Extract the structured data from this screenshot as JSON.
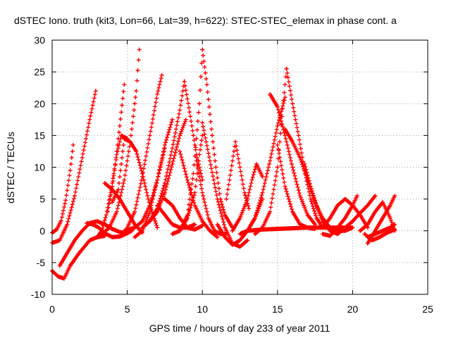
{
  "chart_data": {
    "type": "scatter",
    "title": "dSTEC Iono. truth (kit3, Lon=66, Lat=39, h=622): STEC-STEC_elemax in phase cont. a",
    "xlabel": "GPS time / hours of day 233 of year 2011",
    "ylabel": "dSTEC  / TECUs",
    "xlim": [
      0,
      25
    ],
    "ylim": [
      -10,
      30
    ],
    "xticks": [
      0,
      5,
      10,
      15,
      20,
      25
    ],
    "yticks": [
      -10,
      -5,
      0,
      5,
      10,
      15,
      20,
      25,
      30
    ],
    "grid": true,
    "marker": "+",
    "color": "#ff0000",
    "series": [
      {
        "x": [
          0,
          0.3,
          0.6,
          0.9,
          1.2,
          1.4
        ],
        "y": [
          -0.3,
          0.2,
          1.6,
          4.8,
          9.5,
          13.5
        ]
      },
      {
        "x": [
          0,
          0.5,
          1.0,
          1.5,
          2.0,
          2.5,
          2.9
        ],
        "y": [
          -1.9,
          -1.5,
          1.0,
          5.5,
          11.5,
          17.5,
          22
        ]
      },
      {
        "x": [
          0,
          0.4,
          0.8,
          1.2,
          1.8,
          2.5,
          3.0,
          3.5
        ],
        "y": [
          -6.3,
          -7.2,
          -7.5,
          -5.5,
          -3.5,
          -1.5,
          -1.0,
          -0.8
        ]
      },
      {
        "x": [
          0.5,
          1.0,
          1.5,
          2.0,
          2.5,
          3.0,
          3.5,
          4.0,
          4.5,
          5.0
        ],
        "y": [
          -5.5,
          -3.5,
          -1.5,
          0.0,
          1.2,
          1.5,
          1.0,
          0.3,
          -0.2,
          -0.4
        ]
      },
      {
        "x": [
          2.3,
          2.7,
          3.1,
          3.6,
          4.0,
          4.5,
          4.9,
          5.3
        ],
        "y": [
          1.2,
          1.0,
          0.5,
          -0.5,
          -1.0,
          -0.9,
          -0.5,
          0.0
        ]
      },
      {
        "x": [
          3.0,
          3.3,
          3.6,
          3.9,
          4.2,
          4.5,
          4.8
        ],
        "y": [
          -1.0,
          0.0,
          2.5,
          6.0,
          10.5,
          16.5,
          23
        ]
      },
      {
        "x": [
          3.3,
          3.8,
          4.3,
          4.8,
          5.2,
          5.6,
          5.8
        ],
        "y": [
          -0.6,
          0.5,
          3.0,
          8.0,
          14.0,
          22.0,
          28.5
        ]
      },
      {
        "x": [
          3.5,
          4.0,
          4.5,
          5.0,
          5.5,
          6.0
        ],
        "y": [
          7.5,
          6.5,
          5.0,
          3.0,
          1.0,
          -0.3
        ]
      },
      {
        "x": [
          3.7,
          4.0,
          4.3,
          4.6,
          5.0
        ],
        "y": [
          3.0,
          7.0,
          12.0,
          15.0,
          14.5
        ]
      },
      {
        "x": [
          4.0,
          4.4,
          4.8,
          5.2,
          5.6,
          6.0,
          6.5,
          7.0
        ],
        "y": [
          4.5,
          6.5,
          14.5,
          14.0,
          12.5,
          9.0,
          4.0,
          0.5
        ]
      },
      {
        "x": [
          4.8,
          5.5,
          6.0,
          6.5,
          7.0,
          7.5
        ],
        "y": [
          0.0,
          0.5,
          1.5,
          4.0,
          8.0,
          13.0
        ]
      },
      {
        "x": [
          5.0,
          5.5,
          6.0,
          6.5,
          7.0,
          7.3
        ],
        "y": [
          0.5,
          3.0,
          8.5,
          15.0,
          21.5,
          24.5
        ]
      },
      {
        "x": [
          5.5,
          6.0,
          6.5,
          7.0,
          7.5,
          8.0
        ],
        "y": [
          -1.0,
          0.0,
          3.0,
          8.0,
          13.5,
          17.5
        ]
      },
      {
        "x": [
          6.0,
          6.5,
          7.0,
          7.5,
          8.0,
          8.5,
          8.8
        ],
        "y": [
          0.5,
          1.5,
          3.5,
          7.5,
          13.0,
          19.0,
          23.5
        ]
      },
      {
        "x": [
          6.5,
          7.0,
          7.5,
          8.0,
          8.5,
          8.9
        ],
        "y": [
          1.5,
          3.0,
          6.0,
          10.5,
          15.0,
          17.5
        ]
      },
      {
        "x": [
          7.0,
          7.5,
          8.0,
          8.5,
          9.0,
          9.5
        ],
        "y": [
          4.0,
          2.5,
          1.0,
          0.5,
          0.5,
          1.0
        ]
      },
      {
        "x": [
          7.5,
          8.0,
          8.5,
          9.0,
          9.5,
          10.0
        ],
        "y": [
          5.0,
          4.0,
          2.0,
          0.5,
          0.2,
          0.8
        ]
      },
      {
        "x": [
          8.8,
          9.2,
          9.6,
          10.0
        ],
        "y": [
          23.5,
          18.0,
          12.0,
          8.0
        ]
      },
      {
        "x": [
          8.0,
          8.5,
          9.0,
          9.5,
          9.8,
          10.0
        ],
        "y": [
          -0.5,
          0.0,
          2.0,
          6.0,
          12.0,
          15.0
        ]
      },
      {
        "x": [
          8.5,
          9.0,
          9.4,
          9.8,
          10.0
        ],
        "y": [
          0.0,
          2.5,
          9.0,
          20.0,
          28.5
        ]
      },
      {
        "x": [
          9.6,
          10.0,
          10.4,
          10.8,
          11.2,
          11.6
        ],
        "y": [
          11.0,
          6.0,
          2.0,
          0.0,
          -0.5,
          -0.5
        ]
      },
      {
        "x": [
          10.0,
          10.3,
          10.6,
          10.9,
          11.2,
          11.5,
          12.0
        ],
        "y": [
          28.5,
          23.0,
          16.0,
          10.0,
          5.0,
          2.5,
          0.5
        ]
      },
      {
        "x": [
          8.5,
          9.0,
          9.5,
          10.0,
          10.5,
          11.0
        ],
        "y": [
          12.5,
          8.0,
          4.0,
          1.5,
          0.0,
          -1.0
        ]
      },
      {
        "x": [
          10.0,
          10.5,
          11.0,
          11.5,
          12.0,
          12.5,
          13.0
        ],
        "y": [
          17.0,
          11.0,
          5.0,
          0.5,
          -2.0,
          -2.5,
          -1.5
        ]
      },
      {
        "x": [
          11.0,
          11.5,
          12.0,
          12.5,
          13.0,
          13.5,
          14.0
        ],
        "y": [
          1.0,
          -1.0,
          -2.2,
          -1.5,
          0.0,
          2.0,
          5.0
        ]
      },
      {
        "x": [
          11.6,
          11.9,
          12.2,
          12.5,
          12.8,
          13.1
        ],
        "y": [
          5.0,
          9.5,
          14.0,
          10.0,
          6.0,
          3.5
        ]
      },
      {
        "x": [
          12.0,
          12.5,
          13.0,
          13.3,
          13.6,
          14.0
        ],
        "y": [
          0.0,
          2.0,
          5.0,
          8.0,
          10.5,
          8.5
        ]
      },
      {
        "x": [
          12.5,
          13.0,
          13.5,
          14.0,
          14.5,
          15.0,
          15.5
        ],
        "y": [
          -0.5,
          0.0,
          2.0,
          6.0,
          11.0,
          16.5,
          21.0
        ]
      },
      {
        "x": [
          13.5,
          14.0,
          14.5,
          15.0,
          15.3,
          15.6
        ],
        "y": [
          -0.5,
          0.5,
          3.0,
          10.0,
          18.0,
          25.5
        ]
      },
      {
        "x": [
          14.5,
          15.0,
          15.5,
          16.0,
          16.5,
          17.0,
          17.5
        ],
        "y": [
          21.5,
          19.5,
          15.0,
          10.0,
          5.5,
          2.5,
          1.0
        ]
      },
      {
        "x": [
          15.6,
          16.0,
          16.4,
          16.8,
          17.2,
          17.6,
          18.0
        ],
        "y": [
          25.5,
          20.0,
          15.0,
          9.5,
          5.0,
          2.0,
          0.5
        ]
      },
      {
        "x": [
          15.0,
          15.5,
          16.0,
          16.5,
          17.0,
          17.5
        ],
        "y": [
          13.5,
          7.0,
          3.0,
          1.0,
          0.5,
          0.3
        ]
      },
      {
        "x": [
          15.5,
          16.0,
          16.5,
          17.0,
          17.5,
          18.0,
          18.5,
          19.0
        ],
        "y": [
          16.0,
          14.0,
          11.5,
          8.0,
          4.5,
          1.5,
          0.0,
          -0.5
        ]
      },
      {
        "x": [
          13.0,
          14.0,
          15.0,
          16.0,
          17.0,
          18.0,
          19.0,
          20.0
        ],
        "y": [
          0.0,
          0.2,
          0.3,
          0.4,
          0.5,
          0.5,
          0.5,
          0.5
        ]
      },
      {
        "x": [
          16.8,
          17.2,
          17.6,
          18.0,
          18.5,
          19.0,
          19.5,
          20.0
        ],
        "y": [
          10.5,
          7.0,
          4.0,
          2.0,
          0.5,
          0.0,
          0.0,
          0.5
        ]
      },
      {
        "x": [
          18.0,
          18.5,
          19.0,
          19.5,
          20.0,
          20.3
        ],
        "y": [
          -0.5,
          -0.8,
          0.5,
          2.0,
          4.0,
          5.5
        ]
      },
      {
        "x": [
          18.0,
          18.5,
          19.0,
          19.5,
          20.0,
          20.5,
          21.0
        ],
        "y": [
          0.5,
          2.0,
          4.0,
          5.0,
          4.0,
          2.5,
          0.5
        ]
      },
      {
        "x": [
          19.0,
          19.5,
          20.0,
          20.5,
          21.0,
          21.5
        ],
        "y": [
          -0.5,
          0.5,
          1.5,
          2.8,
          4.0,
          5.5
        ]
      },
      {
        "x": [
          20.5,
          21.0,
          21.5,
          22.0,
          22.5,
          22.8
        ],
        "y": [
          0.0,
          1.0,
          3.0,
          4.5,
          2.0,
          0.0
        ]
      },
      {
        "x": [
          21.0,
          21.5,
          22.0,
          22.5,
          22.8
        ],
        "y": [
          -1.0,
          -0.5,
          0.0,
          0.5,
          1.0
        ]
      },
      {
        "x": [
          21.0,
          21.5,
          22.0,
          22.5,
          22.8
        ],
        "y": [
          -2.0,
          0.0,
          2.0,
          4.0,
          5.5
        ]
      },
      {
        "x": [
          20.8,
          21.3,
          21.8,
          22.3,
          22.8
        ],
        "y": [
          -0.5,
          -1.5,
          -1.0,
          -0.3,
          0.2
        ]
      }
    ]
  }
}
